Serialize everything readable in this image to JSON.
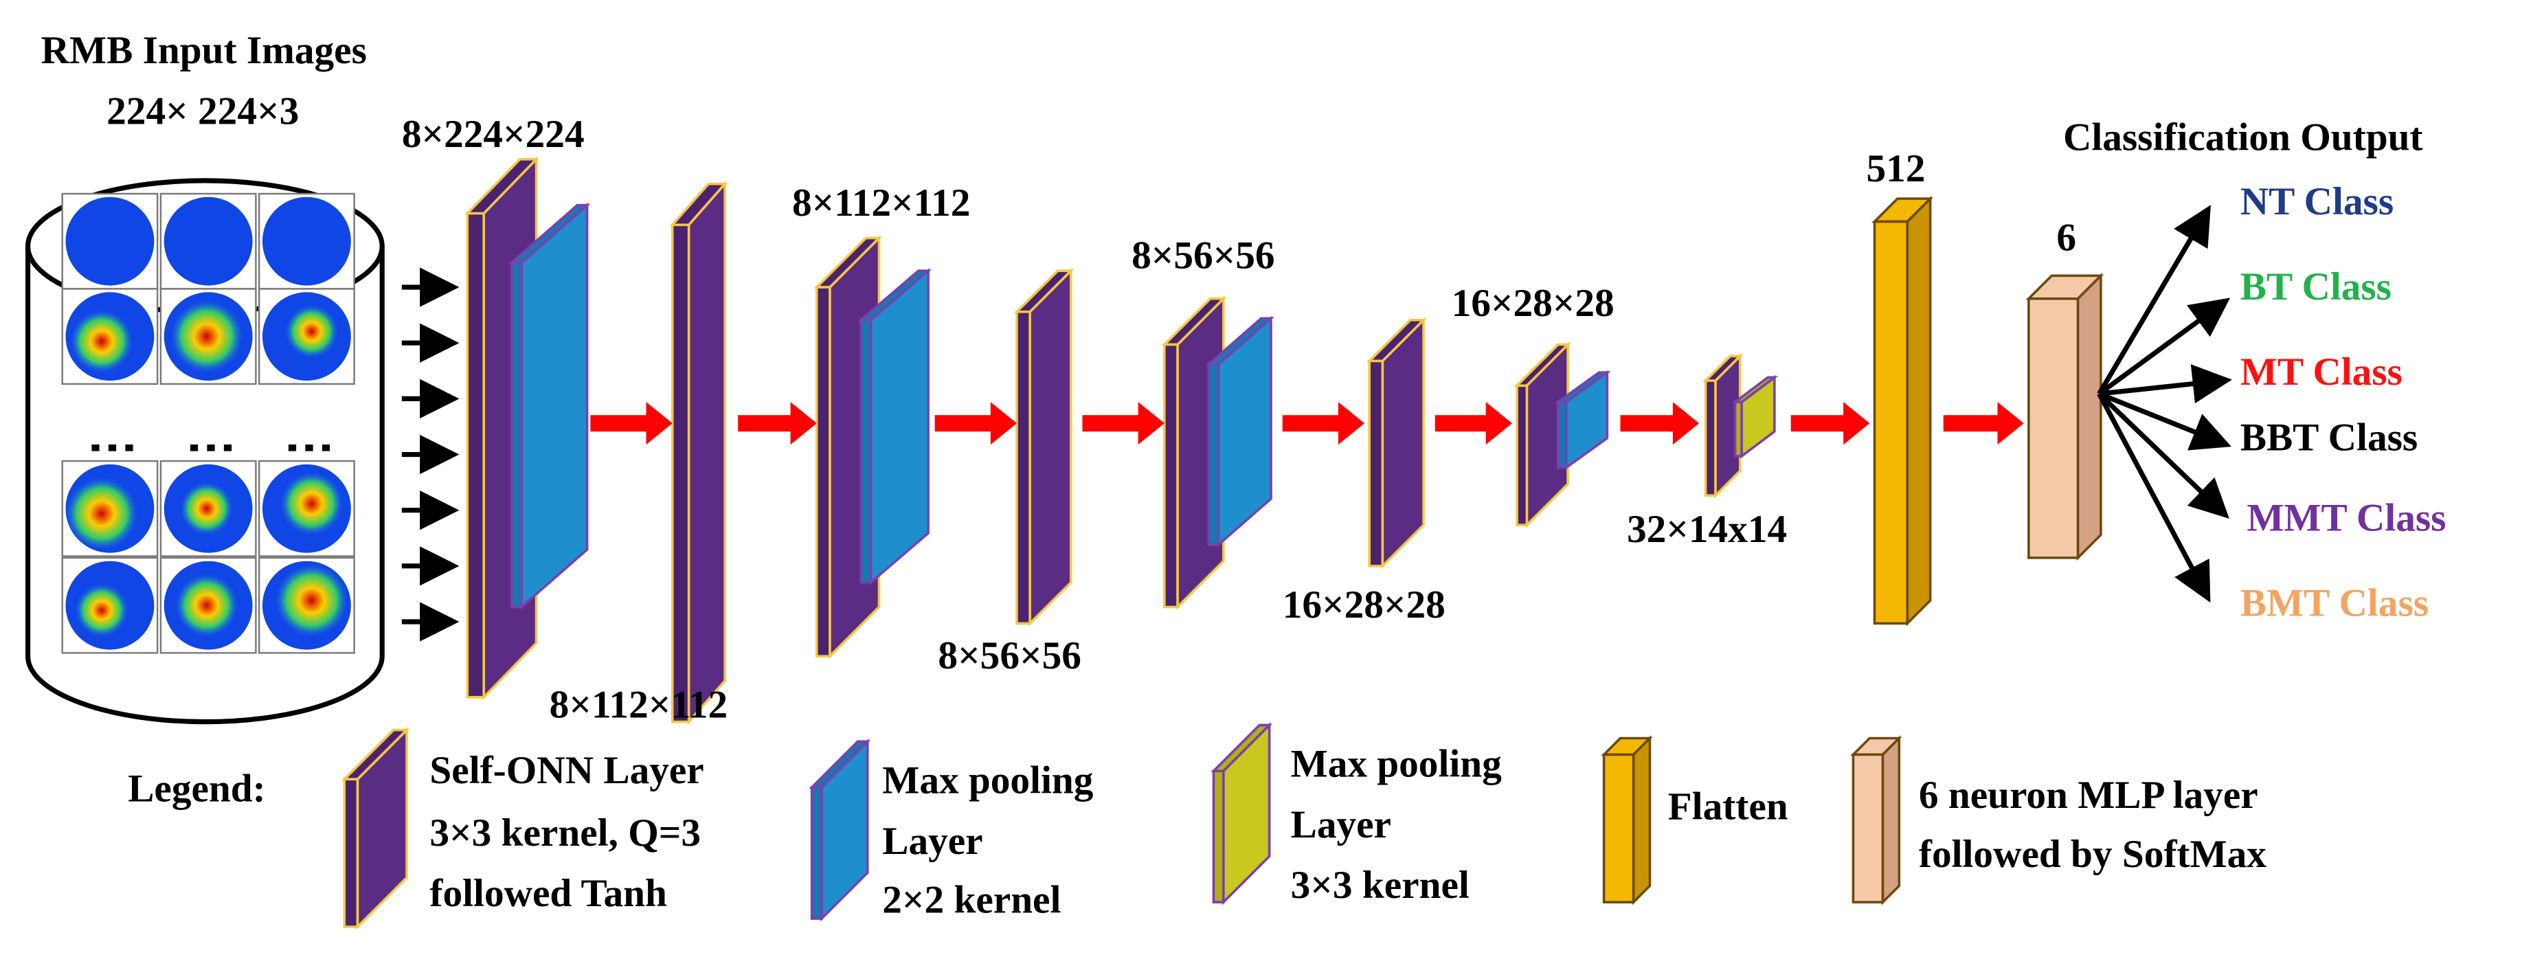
{
  "input": {
    "title": "RMB Input Images",
    "size": "224× 224×3"
  },
  "layers": {
    "l1": "8×224×224",
    "l2": "8×112×112",
    "l3": "8×112×112",
    "l4": "8×56×56",
    "l5": "8×56×56",
    "l6": "16×28×28",
    "l7": "16×28×28",
    "l8": "32×14x14",
    "flatten": "512",
    "mlp": "6"
  },
  "output": {
    "title": "Classification Output",
    "classes": [
      "NT Class",
      "BT Class",
      "MT Class",
      "BBT Class",
      "MMT Class",
      "BMT Class"
    ]
  },
  "legend": {
    "title": "Legend:",
    "items": [
      {
        "lines": [
          "Self-ONN Layer",
          "3×3 kernel, Q=3",
          "followed Tanh"
        ]
      },
      {
        "lines": [
          "Max pooling",
          "Layer",
          "2×2 kernel"
        ]
      },
      {
        "lines": [
          "Max pooling",
          "Layer",
          "3×3 kernel"
        ]
      },
      {
        "lines": [
          "Flatten"
        ]
      },
      {
        "lines": [
          "6 neuron MLP layer",
          "followed by SoftMax"
        ]
      }
    ]
  }
}
